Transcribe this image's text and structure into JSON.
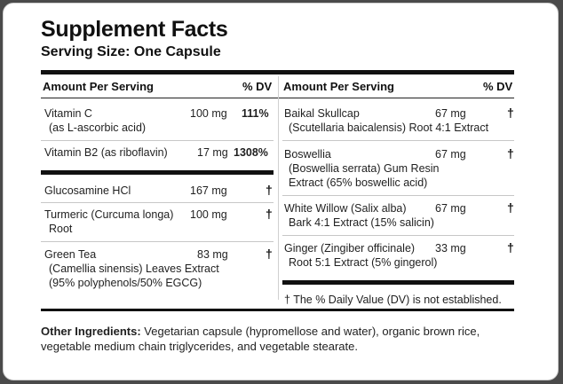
{
  "title": "Supplement Facts",
  "serving_size": "Serving Size: One Capsule",
  "headers": {
    "amount_per_serving": "Amount Per Serving",
    "dv": "% DV"
  },
  "left_column": [
    {
      "name_line1": "Vitamin C",
      "name_line2": "(as L-ascorbic acid)",
      "amount": "100 mg",
      "dv": "111%"
    },
    {
      "name_line1": "Vitamin B2 (as riboflavin)",
      "amount": "17 mg",
      "dv": "1308%"
    },
    {
      "name_line1": "Glucosamine HCl",
      "amount": "167 mg",
      "dv": "†"
    },
    {
      "name_line1": "Turmeric (Curcuma longa)",
      "name_line2": "Root",
      "amount": "100 mg",
      "dv": "†"
    },
    {
      "name_line1": "Green Tea",
      "name_line2": "(Camellia sinensis) Leaves Extract",
      "name_line3": "(95% polyphenols/50% EGCG)",
      "amount": "83 mg",
      "dv": "†"
    }
  ],
  "right_column": [
    {
      "name_line1": "Baikal Skullcap",
      "name_line2": "(Scutellaria baicalensis) Root 4:1 Extract",
      "amount": "67 mg",
      "dv": "†"
    },
    {
      "name_line1": "Boswellia",
      "name_line2": "(Boswellia serrata) Gum Resin",
      "name_line3": "Extract (65% boswellic acid)",
      "amount": "67 mg",
      "dv": "†"
    },
    {
      "name_line1": "White Willow (Salix alba)",
      "name_line2": "Bark 4:1 Extract (15% salicin)",
      "amount": "67 mg",
      "dv": "†"
    },
    {
      "name_line1": "Ginger (Zingiber officinale)",
      "name_line2": "Root 5:1 Extract (5% gingerol)",
      "amount": "33 mg",
      "dv": "†"
    }
  ],
  "footnote": "† The % Daily Value (DV) is not established.",
  "other_ingredients": {
    "label": "Other Ingredients:",
    "text": " Vegetarian capsule (hypromellose and water), organic brown rice, vegetable medium chain triglycerides, and vegetable stearate."
  }
}
